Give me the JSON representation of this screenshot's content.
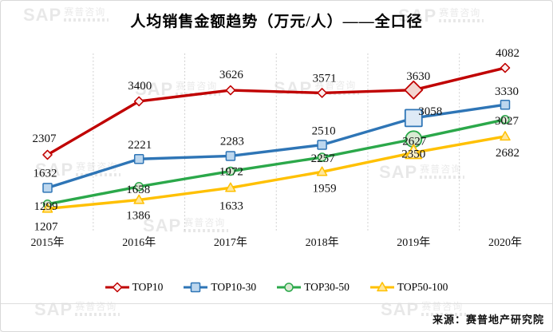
{
  "watermark": {
    "brand": "SAP",
    "suffix": "赛普咨询"
  },
  "source_note": "来源：赛普地产研究院",
  "chart_data": {
    "type": "line",
    "title": "人均销售金额趋势（万元/人）——全口径",
    "categories": [
      "2015年",
      "2016年",
      "2017年",
      "2018年",
      "2019年",
      "2020年"
    ],
    "series": [
      {
        "name": "TOP10",
        "color": "#C00000",
        "marker": "diamond",
        "marker_fill": "#FCEFEF",
        "marker_fill_emphasis": "#F3D6D1",
        "values": [
          2307,
          3400,
          3626,
          3571,
          3630,
          4082
        ],
        "label_offsets": [
          [
            -4,
            -21
          ],
          [
            1,
            -20
          ],
          [
            1,
            -20
          ],
          [
            3,
            -19
          ],
          [
            6,
            -18
          ],
          [
            3,
            -19
          ]
        ]
      },
      {
        "name": "TOP10-30",
        "color": "#2E75B6",
        "marker": "square",
        "marker_fill": "#BDD7EE",
        "marker_fill_emphasis": "#DEEAF6",
        "values": [
          1632,
          2221,
          2283,
          2510,
          3058,
          3330
        ],
        "label_offsets": [
          [
            -3,
            -19
          ],
          [
            1,
            -18
          ],
          [
            2,
            -19
          ],
          [
            2,
            -18
          ],
          [
            21,
            -9
          ],
          [
            2,
            -17
          ]
        ]
      },
      {
        "name": "TOP30-50",
        "color": "#2BA84A",
        "marker": "circle",
        "marker_fill": "#D9E8D2",
        "marker_fill_emphasis": "#D9EAD3",
        "values": [
          1299,
          1658,
          1972,
          2257,
          2627,
          3027
        ],
        "label_offsets": [
          [
            -2,
            2
          ],
          [
            -1,
            3
          ],
          [
            1,
            0
          ],
          [
            1,
            1
          ],
          [
            1,
            2
          ],
          [
            2,
            1
          ]
        ]
      },
      {
        "name": "TOP50-100",
        "color": "#FFC000",
        "marker": "triangle",
        "marker_fill": "#FFE699",
        "marker_fill_emphasis": "#FFF2CC",
        "values": [
          1207,
          1386,
          1633,
          1959,
          2350,
          2682
        ],
        "label_offsets": [
          [
            -2,
            22
          ],
          [
            -1,
            19
          ],
          [
            1,
            22
          ],
          [
            3,
            20
          ],
          [
            0,
            1
          ],
          [
            3,
            20
          ]
        ]
      }
    ],
    "emphasized_category_index": 4,
    "data_labels": true,
    "legend_position": "bottom",
    "y_axis": {
      "visible": false,
      "ylim": [
        1100,
        4400
      ]
    },
    "grid": {
      "vertical_between_categories": true,
      "style": "dotted",
      "color": "#cccccc"
    }
  }
}
